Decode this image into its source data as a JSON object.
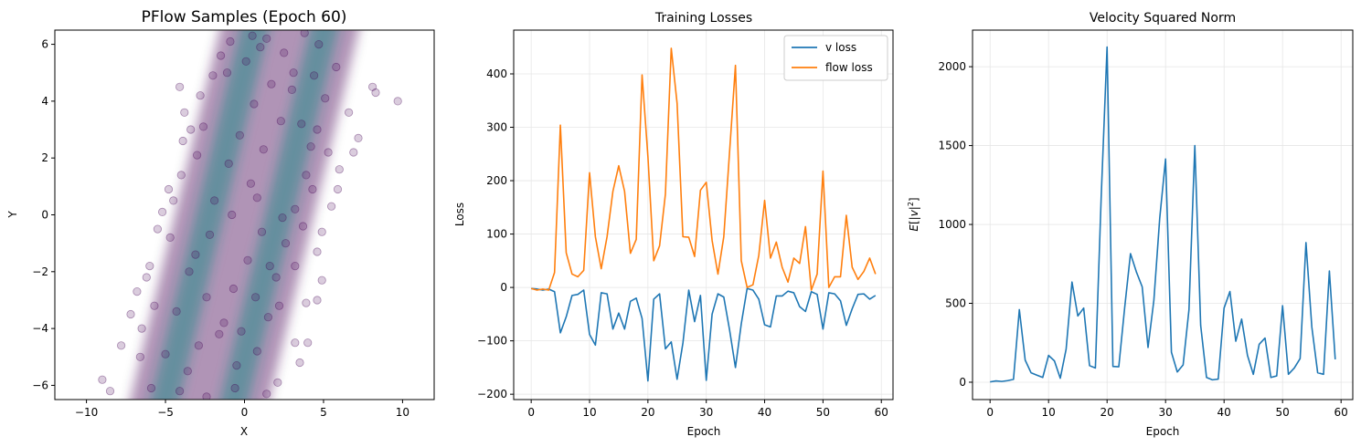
{
  "chart_data": [
    {
      "type": "scatter",
      "title": "PFlow Samples (Epoch 60)",
      "xlabel": "X",
      "ylabel": "Y",
      "xlim": [
        -12,
        12
      ],
      "ylim": [
        -6.5,
        6.5
      ],
      "xticks": [
        -10,
        -5,
        0,
        5,
        10
      ],
      "xtick_labels": [
        "−10",
        "−5",
        "0",
        "5",
        "10"
      ],
      "yticks": [
        -6,
        -4,
        -2,
        0,
        2,
        4,
        6
      ],
      "ytick_labels": [
        "−6",
        "−4",
        "−2",
        "0",
        "2",
        "4",
        "6"
      ],
      "grid": false,
      "point_color": "#440154",
      "density_color": "#2a8a8a",
      "band": {
        "slope": 2.3,
        "center_x_at_y0": 0.0,
        "inner_gap": 2.2
      },
      "points": [
        [
          -8.5,
          -6.2
        ],
        [
          -9.0,
          -5.8
        ],
        [
          -7.8,
          -4.6
        ],
        [
          -7.2,
          -3.5
        ],
        [
          -6.8,
          -2.7
        ],
        [
          -6.0,
          -1.8
        ],
        [
          -5.5,
          -0.5
        ],
        [
          -5.2,
          0.1
        ],
        [
          -4.8,
          0.9
        ],
        [
          -4.0,
          1.4
        ],
        [
          -3.9,
          2.6
        ],
        [
          -3.4,
          3.0
        ],
        [
          -3.8,
          3.6
        ],
        [
          -4.1,
          4.5
        ],
        [
          -2.8,
          4.2
        ],
        [
          -2.0,
          4.9
        ],
        [
          -1.5,
          5.6
        ],
        [
          -0.9,
          6.1
        ],
        [
          0.5,
          6.3
        ],
        [
          1.4,
          6.2
        ],
        [
          3.8,
          6.4
        ],
        [
          4.7,
          6.0
        ],
        [
          5.8,
          5.2
        ],
        [
          8.1,
          4.5
        ],
        [
          8.3,
          4.3
        ],
        [
          9.7,
          4.0
        ],
        [
          6.6,
          3.6
        ],
        [
          7.2,
          2.7
        ],
        [
          6.9,
          2.2
        ],
        [
          6.0,
          1.6
        ],
        [
          5.9,
          0.9
        ],
        [
          5.5,
          0.3
        ],
        [
          4.9,
          -0.6
        ],
        [
          4.6,
          -1.3
        ],
        [
          4.9,
          -2.3
        ],
        [
          4.6,
          -3.0
        ],
        [
          3.9,
          -3.1
        ],
        [
          4.0,
          -4.5
        ],
        [
          3.5,
          -5.2
        ],
        [
          2.1,
          -5.9
        ],
        [
          1.4,
          -6.3
        ],
        [
          -0.6,
          -6.1
        ],
        [
          -2.4,
          -6.4
        ],
        [
          -4.1,
          -6.2
        ],
        [
          -5.9,
          -6.1
        ],
        [
          2.2,
          -3.2
        ],
        [
          3.2,
          -4.5
        ],
        [
          -6.5,
          -4.0
        ],
        [
          -5.7,
          -3.2
        ],
        [
          -6.2,
          -2.2
        ],
        [
          -4.7,
          -0.8
        ],
        [
          -4.5,
          0.5
        ],
        [
          -3.0,
          2.1
        ],
        [
          -2.6,
          3.1
        ],
        [
          -1.1,
          5.0
        ],
        [
          0.1,
          5.4
        ],
        [
          1.0,
          5.9
        ],
        [
          2.5,
          5.7
        ],
        [
          3.1,
          5.0
        ],
        [
          3.6,
          3.2
        ],
        [
          4.2,
          2.4
        ],
        [
          3.9,
          1.4
        ],
        [
          3.2,
          0.2
        ],
        [
          2.6,
          -1.0
        ],
        [
          2.0,
          -2.2
        ],
        [
          1.5,
          -3.6
        ],
        [
          0.8,
          -4.8
        ],
        [
          -0.5,
          -5.3
        ],
        [
          -1.6,
          -4.2
        ],
        [
          -2.4,
          -2.9
        ],
        [
          -3.1,
          -1.4
        ],
        [
          -1.9,
          0.5
        ],
        [
          -1.0,
          1.8
        ],
        [
          -0.3,
          2.8
        ],
        [
          0.6,
          3.9
        ],
        [
          1.7,
          4.6
        ],
        [
          -6.6,
          -5.0
        ],
        [
          -5.0,
          -4.9
        ],
        [
          -3.6,
          -5.5
        ],
        [
          -2.9,
          -4.6
        ],
        [
          -4.3,
          -3.4
        ],
        [
          -3.5,
          -2.0
        ],
        [
          -2.2,
          -0.7
        ],
        [
          -0.8,
          0.0
        ],
        [
          0.4,
          1.1
        ],
        [
          1.2,
          2.3
        ],
        [
          2.3,
          3.3
        ],
        [
          3.0,
          4.4
        ],
        [
          4.4,
          4.9
        ],
        [
          5.1,
          4.1
        ],
        [
          4.6,
          3.0
        ],
        [
          5.3,
          2.2
        ],
        [
          4.3,
          0.9
        ],
        [
          3.7,
          -0.4
        ],
        [
          3.2,
          -1.8
        ],
        [
          1.1,
          -0.6
        ],
        [
          0.2,
          -1.6
        ],
        [
          -0.7,
          -2.6
        ],
        [
          -1.3,
          -3.8
        ],
        [
          0.7,
          -2.9
        ],
        [
          -0.2,
          -4.1
        ],
        [
          1.6,
          -1.8
        ],
        [
          2.4,
          -0.1
        ],
        [
          0.8,
          0.6
        ]
      ]
    },
    {
      "type": "line",
      "title": "Training Losses",
      "xlabel": "Epoch",
      "ylabel": "Loss",
      "xlim": [
        -3,
        62
      ],
      "ylim": [
        -210,
        482
      ],
      "xticks": [
        0,
        10,
        20,
        30,
        40,
        50,
        60
      ],
      "xtick_labels": [
        "0",
        "10",
        "20",
        "30",
        "40",
        "50",
        "60"
      ],
      "yticks": [
        -200,
        -100,
        0,
        100,
        200,
        300,
        400
      ],
      "ytick_labels": [
        "−200",
        "−100",
        "0",
        "100",
        "200",
        "300",
        "400"
      ],
      "grid": true,
      "legend": "top-right",
      "series": [
        {
          "name": "v loss",
          "color": "#1f77b4",
          "values": [
            -2,
            -3,
            -5,
            -3,
            -8,
            -85,
            -55,
            -15,
            -13,
            -5,
            -88,
            -108,
            -10,
            -12,
            -78,
            -48,
            -78,
            -26,
            -20,
            -58,
            -175,
            -22,
            -12,
            -115,
            -102,
            -172,
            -104,
            -5,
            -64,
            -15,
            -174,
            -50,
            -12,
            -18,
            -80,
            -150,
            -68,
            -2,
            -5,
            -22,
            -70,
            -74,
            -16,
            -16,
            -7,
            -10,
            -36,
            -45,
            -8,
            -13,
            -78,
            -10,
            -12,
            -25,
            -71,
            -40,
            -13,
            -12,
            -22,
            -15
          ]
        },
        {
          "name": "flow loss",
          "color": "#ff7f0e",
          "values": [
            -2,
            -5,
            -3,
            -5,
            28,
            304,
            65,
            25,
            20,
            32,
            215,
            95,
            35,
            95,
            180,
            228,
            180,
            64,
            90,
            398,
            245,
            50,
            78,
            175,
            448,
            345,
            95,
            94,
            58,
            182,
            197,
            88,
            25,
            95,
            255,
            416,
            50,
            0,
            5,
            60,
            163,
            55,
            85,
            38,
            10,
            55,
            45,
            114,
            -5,
            25,
            218,
            0,
            20,
            20,
            135,
            38,
            15,
            30,
            55,
            25
          ]
        }
      ]
    },
    {
      "type": "line",
      "title": "Velocity Squared Norm",
      "xlabel": "Epoch",
      "ylabel": "$E[|v|^2]$",
      "xlim": [
        -3,
        62
      ],
      "ylim": [
        -110,
        2232
      ],
      "xticks": [
        0,
        10,
        20,
        30,
        40,
        50,
        60
      ],
      "xtick_labels": [
        "0",
        "10",
        "20",
        "30",
        "40",
        "50",
        "60"
      ],
      "yticks": [
        0,
        500,
        1000,
        1500,
        2000
      ],
      "ytick_labels": [
        "0",
        "500",
        "1000",
        "1500",
        "2000"
      ],
      "grid": true,
      "series": [
        {
          "name": "",
          "color": "#1f77b4",
          "values": [
            2,
            8,
            5,
            10,
            18,
            460,
            140,
            60,
            45,
            30,
            170,
            135,
            25,
            210,
            635,
            420,
            470,
            105,
            90,
            1180,
            2125,
            100,
            98,
            470,
            815,
            700,
            605,
            220,
            520,
            1040,
            1415,
            190,
            65,
            110,
            460,
            1500,
            360,
            30,
            15,
            20,
            470,
            575,
            260,
            400,
            170,
            50,
            240,
            280,
            30,
            40,
            485,
            50,
            90,
            150,
            885,
            350,
            60,
            50,
            705,
            145
          ]
        }
      ]
    }
  ]
}
